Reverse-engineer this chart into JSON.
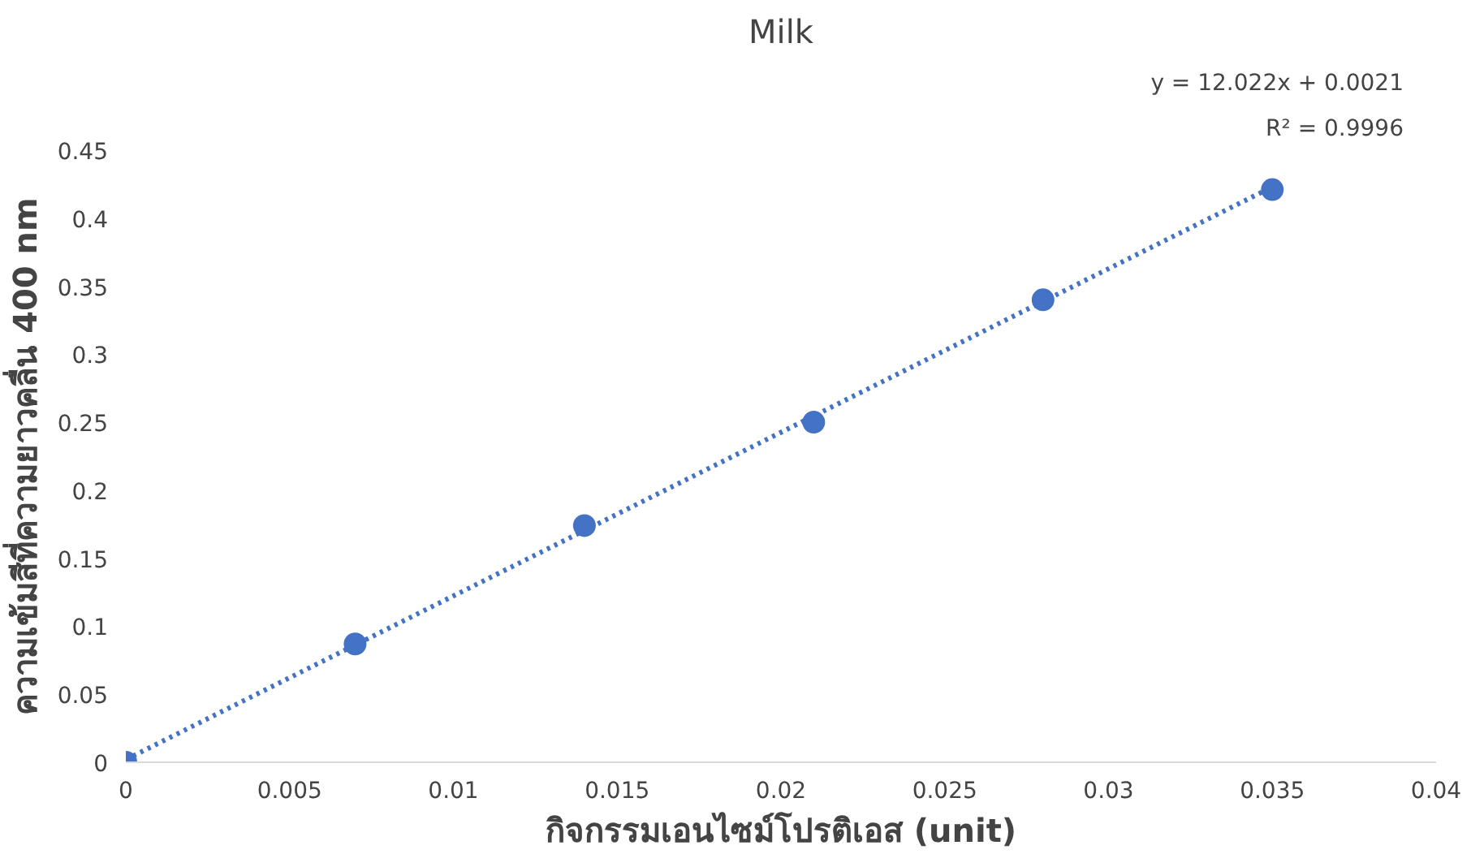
{
  "chart_data": {
    "type": "scatter",
    "title": "Milk",
    "xlabel": "กิจกรรมเอนไซม์โปรติเอส (unit)",
    "ylabel": "ความเข้มสีที่ความยาวคลื่น 400 nm",
    "x": [
      0,
      0.007,
      0.014,
      0.021,
      0.028,
      0.035
    ],
    "series": [
      {
        "color": "#4472c4",
        "marker": "circle",
        "values": [
          0,
          0.087,
          0.174,
          0.25,
          0.34,
          0.421
        ]
      },
      {
        "type": "line",
        "color": "#4472c4",
        "line_style": "dotted",
        "marker": "none",
        "x": [
          0,
          0.035
        ],
        "values": [
          0.002,
          0.423
        ]
      }
    ],
    "xlim": [
      0,
      0.04
    ],
    "xticks": [
      0,
      0.005,
      0.01,
      0.015,
      0.02,
      0.025,
      0.03,
      0.035,
      0.04
    ],
    "ylim": [
      0,
      0.45
    ],
    "yticks": [
      0,
      0.05,
      0.1,
      0.15,
      0.2,
      0.25,
      0.3,
      0.35,
      0.4,
      0.45
    ],
    "grid": false,
    "annotations": [
      "y = 12.022x + 0.0021",
      "R² = 0.9996"
    ]
  }
}
